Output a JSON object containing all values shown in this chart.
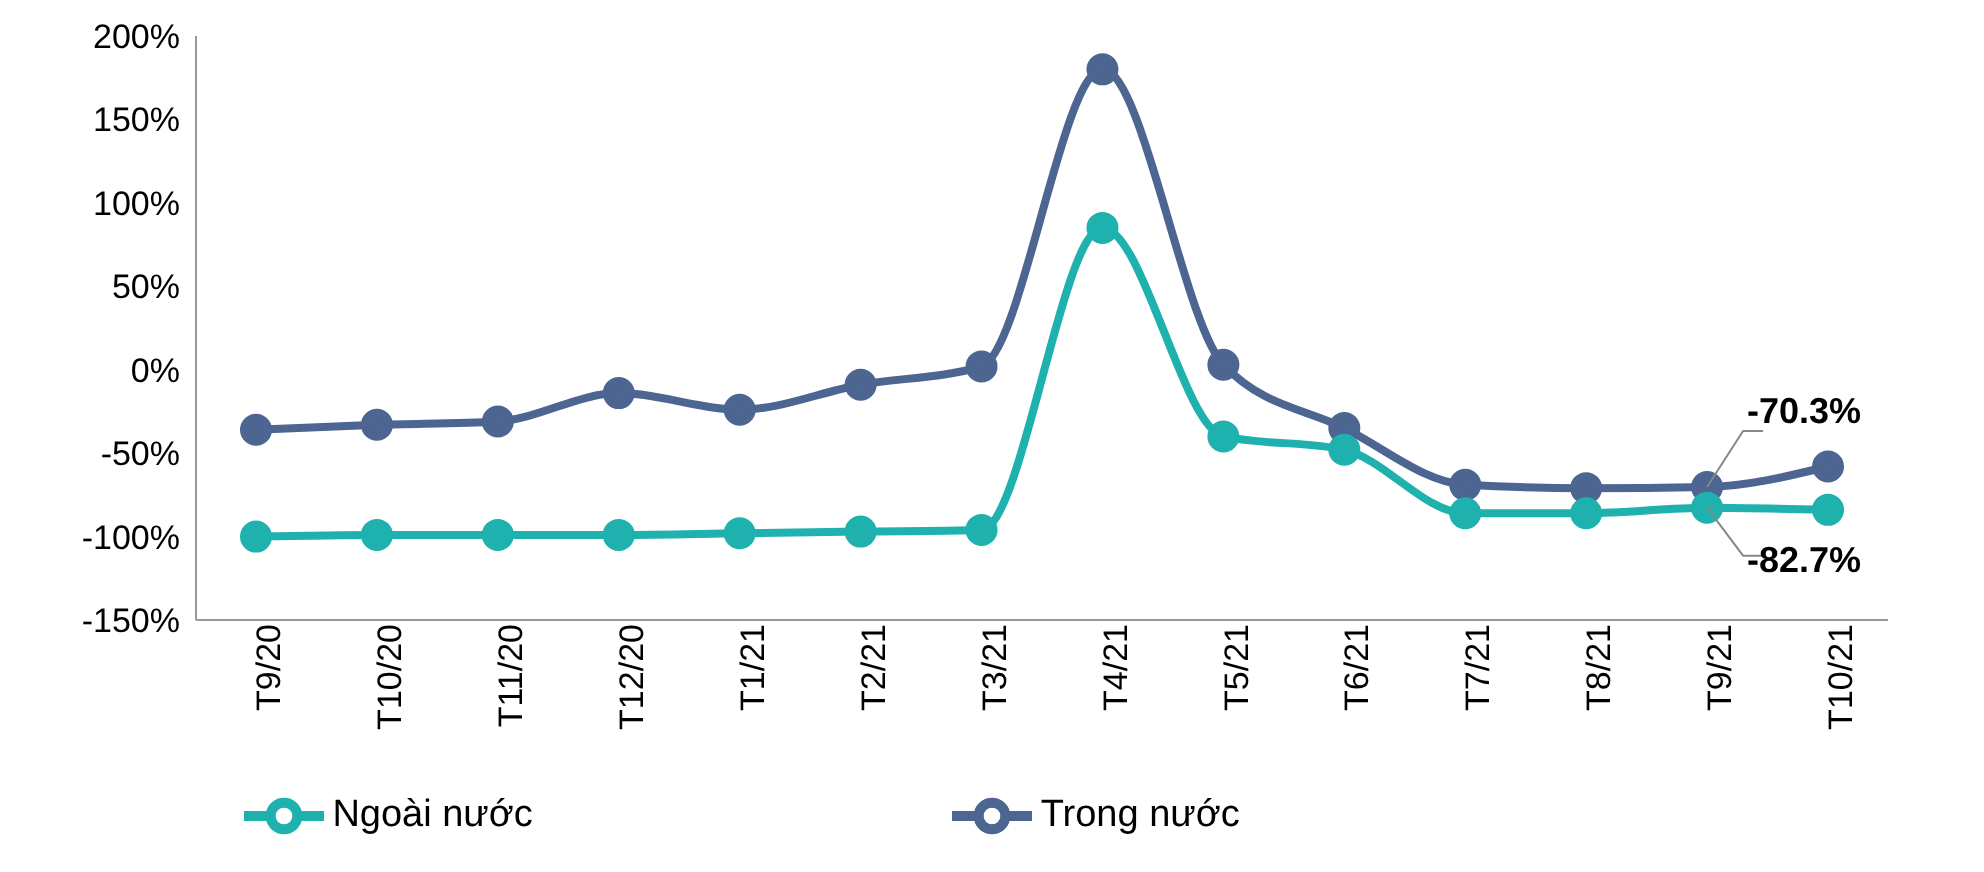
{
  "chart_data": {
    "type": "line",
    "categories": [
      "T9/20",
      "T10/20",
      "T11/20",
      "T12/20",
      "T1/21",
      "T2/21",
      "T3/21",
      "T4/21",
      "T5/21",
      "T6/21",
      "T7/21",
      "T8/21",
      "T9/21",
      "T10/21"
    ],
    "series": [
      {
        "name": "Trong nước",
        "color": "#4c6591",
        "values": [
          -36,
          -33,
          -31,
          -14,
          -24,
          -9,
          2,
          180,
          3,
          -35,
          -69,
          -71,
          -70.3,
          -58
        ],
        "value_labels": [
          null,
          null,
          null,
          null,
          null,
          null,
          null,
          null,
          null,
          null,
          null,
          null,
          "-70.3%",
          null
        ]
      },
      {
        "name": "Ngoài nước",
        "color": "#1fb1ae",
        "values": [
          -100,
          -99,
          -99,
          -99,
          -98,
          -97,
          -96,
          85,
          -40,
          -48,
          -86,
          -86,
          -82.7,
          -84
        ],
        "value_labels": [
          null,
          null,
          null,
          null,
          null,
          null,
          null,
          null,
          null,
          null,
          null,
          null,
          "-82.7%",
          null
        ]
      }
    ],
    "ylim": [
      -150,
      200
    ],
    "yticks": [
      {
        "value": -150,
        "label": "-150%"
      },
      {
        "value": -100,
        "label": "-100%"
      },
      {
        "value": -50,
        "label": "-50%"
      },
      {
        "value": 0,
        "label": "0%"
      },
      {
        "value": 50,
        "label": "50%"
      },
      {
        "value": 100,
        "label": "100%"
      },
      {
        "value": 150,
        "label": "150%"
      },
      {
        "value": 200,
        "label": "200%"
      }
    ],
    "grid": false,
    "legend": "bottom",
    "marker": "circle",
    "line_style": "solid"
  }
}
